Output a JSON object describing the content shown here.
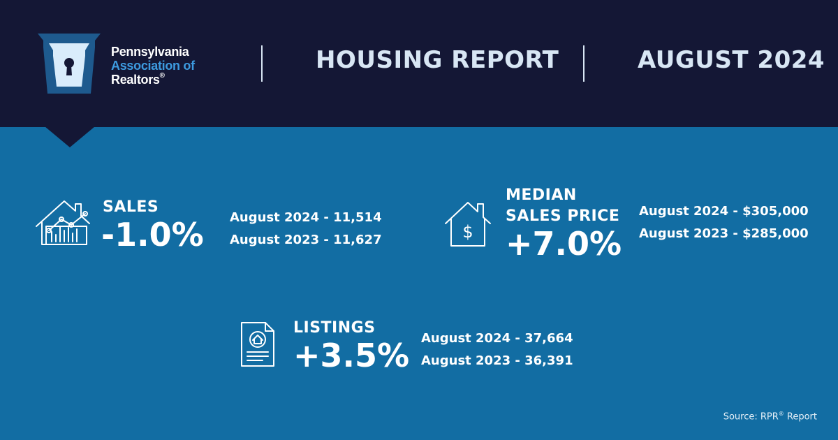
{
  "logo": {
    "line1": "Pennsylvania",
    "line2": "Association of",
    "line3": "Realtors",
    "registered_mark": "®"
  },
  "header": {
    "title": "HOUSING REPORT",
    "period": "AUGUST 2024"
  },
  "stats": {
    "sales": {
      "icon": "house-chart-icon",
      "label": "SALES",
      "change": "-1.0%",
      "current": "August 2024 - 11,514",
      "previous": "August 2023 - 11,627"
    },
    "median_price": {
      "icon": "house-dollar-icon",
      "label_line1": "MEDIAN",
      "label_line2": "SALES PRICE",
      "change": "+7.0%",
      "current": "August 2024 - $305,000",
      "previous": "August 2023 - $285,000"
    },
    "listings": {
      "icon": "listing-document-icon",
      "label": "LISTINGS",
      "change": "+3.5%",
      "current": "August 2024 - 37,664",
      "previous": "August 2023 - 36,391"
    }
  },
  "source": {
    "text_before": "Source: RPR",
    "registered_mark": "®",
    "text_after": " Report"
  },
  "colors": {
    "header_bg": "#141735",
    "body_bg": "#126da3",
    "logo_accent": "#3d9be0",
    "header_text": "#d8e6f4"
  }
}
